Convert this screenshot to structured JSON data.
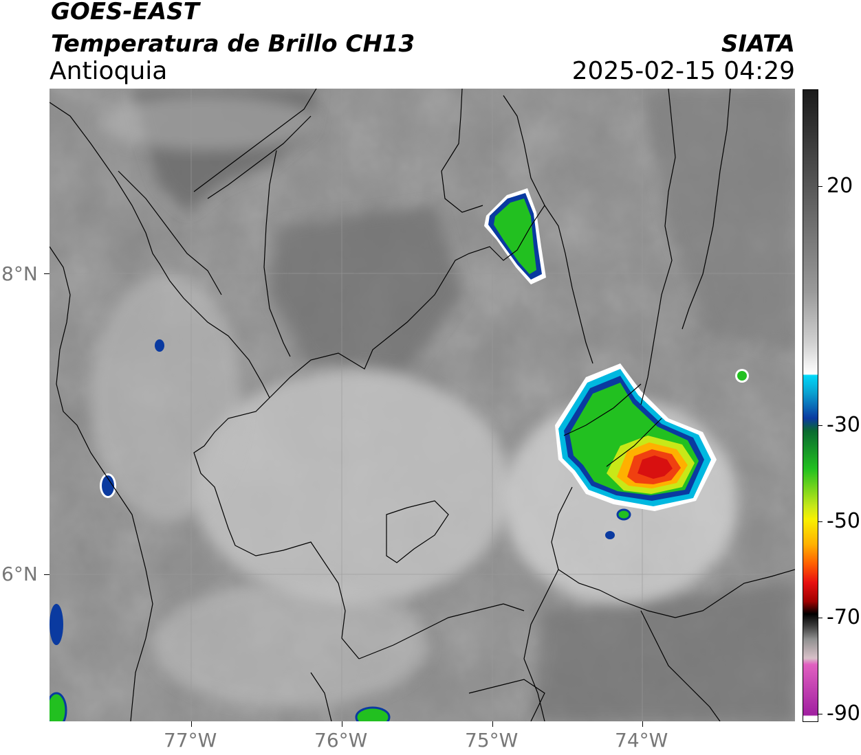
{
  "header": {
    "title_line1": "GOES-EAST",
    "title_line2": "Temperatura de Brillo CH13",
    "region": "Antioquia",
    "brand": "SIATA",
    "datetime": "2025-02-15 04:29"
  },
  "map": {
    "latitude_labels": [
      "8°N",
      "6°N"
    ],
    "longitude_labels": [
      "77°W",
      "76°W",
      "75°W",
      "74°W"
    ]
  },
  "colorbar": {
    "labels": [
      "20",
      "-30",
      "-50",
      "-70",
      "-90"
    ],
    "colors": {
      "warm_top": "#1a1a1a",
      "mid_gray": "#8a8a8a",
      "white": "#ffffff",
      "cyan": "#00d8f8",
      "blue": "#0a3aa0",
      "green": "#22c020",
      "yellow": "#f8f000",
      "orange": "#ff8a00",
      "red": "#e81010",
      "black": "#000000",
      "pink": "#e060c0",
      "purple": "#a020a0"
    }
  }
}
